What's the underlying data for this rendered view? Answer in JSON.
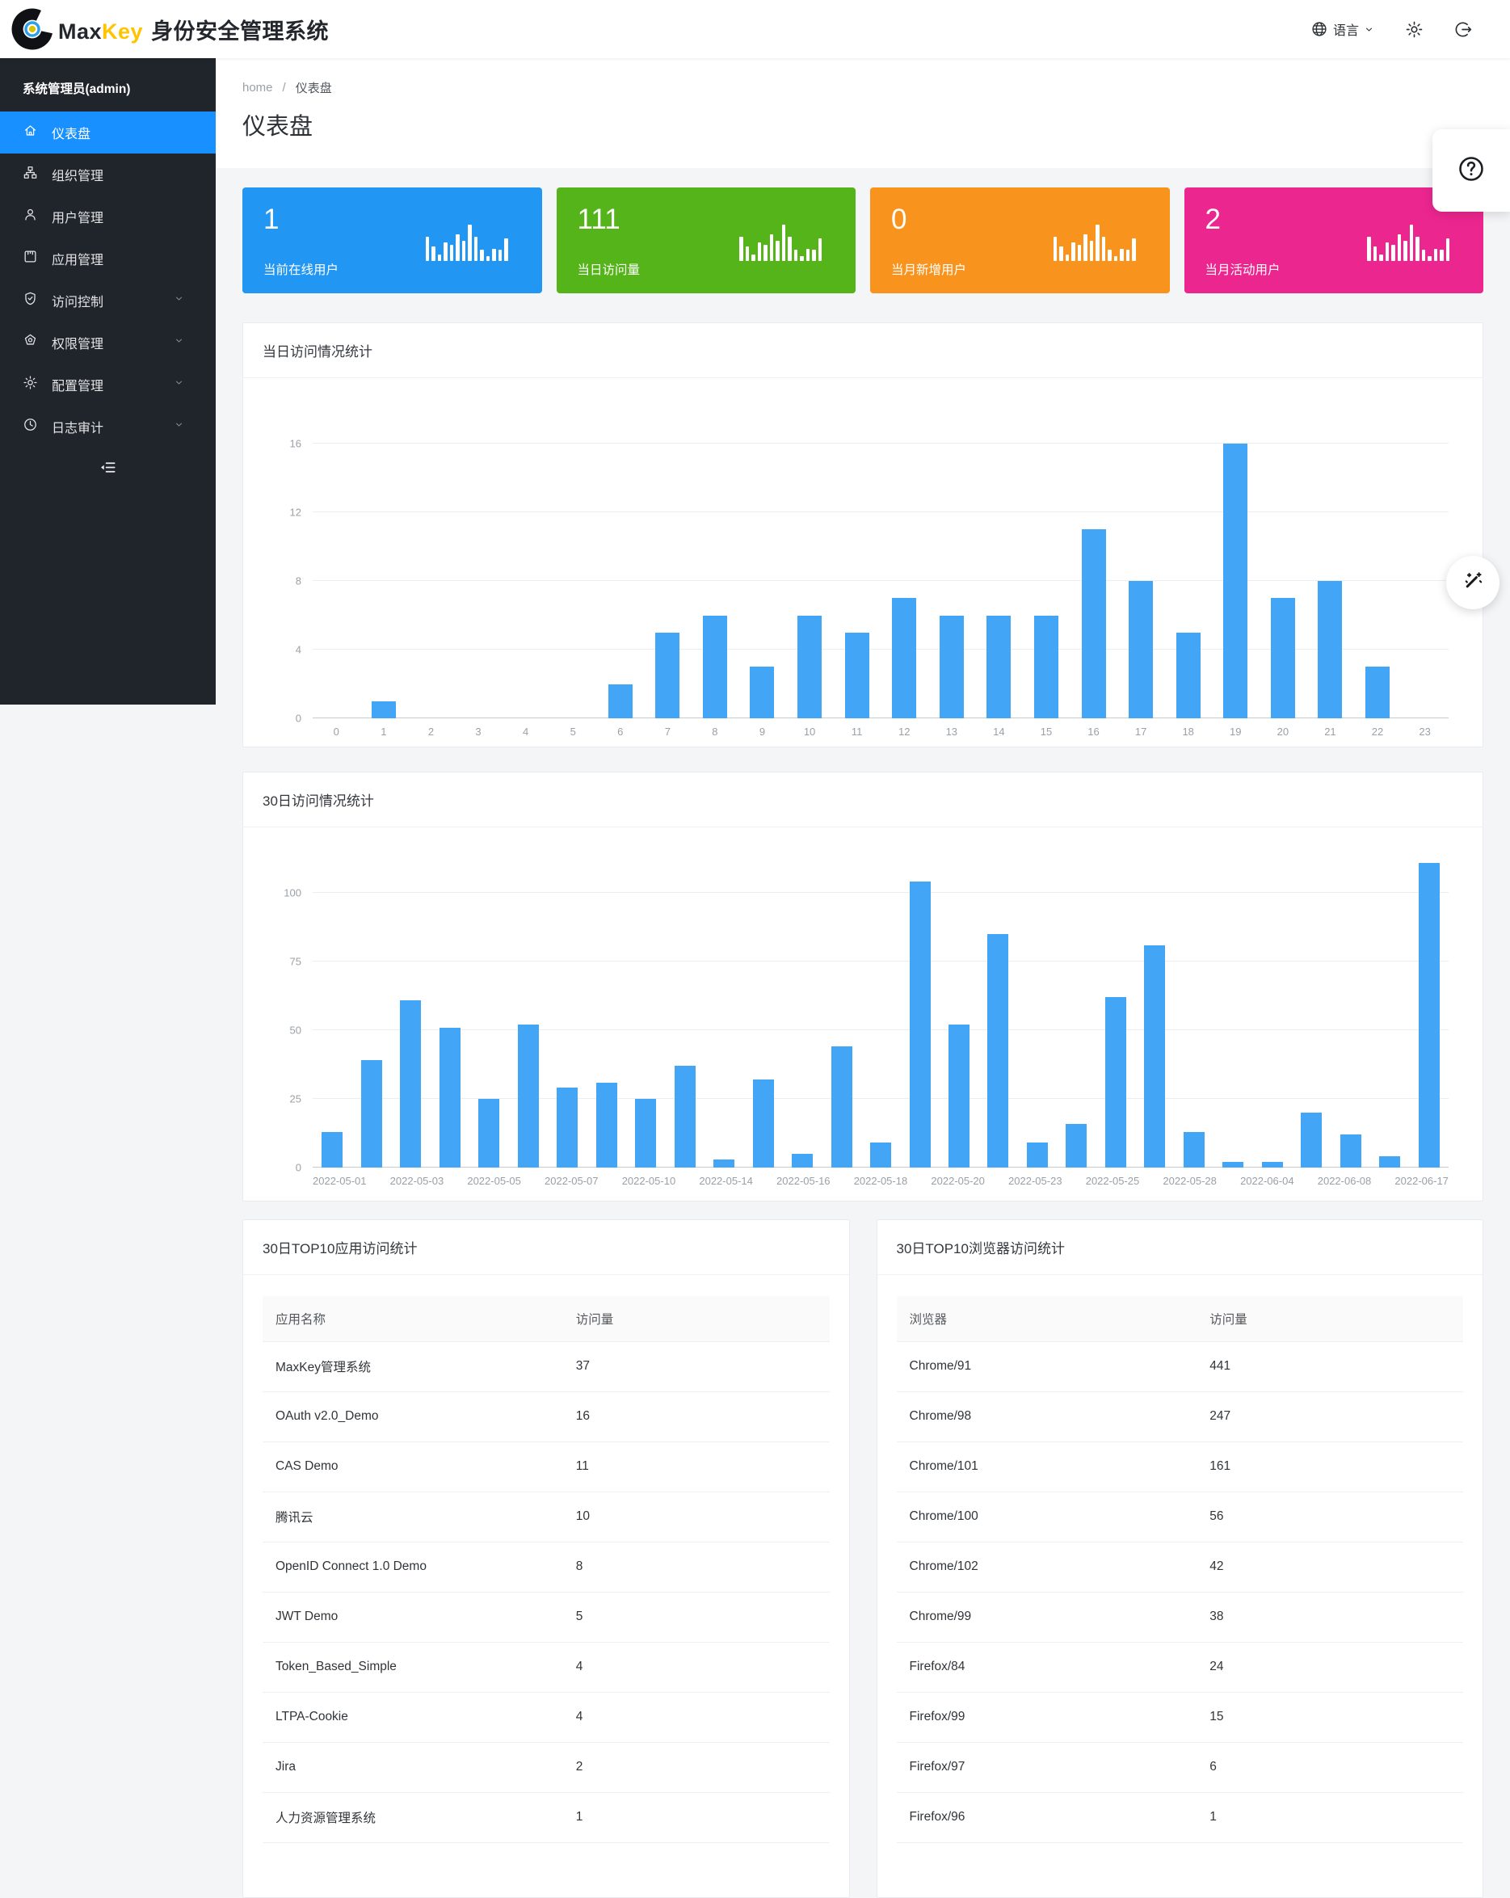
{
  "header": {
    "brand_max": "Max",
    "brand_key": "Key",
    "brand_suffix": "身份安全管理系统",
    "language_label": "语言"
  },
  "sidebar": {
    "admin_label": "系统管理员(admin)",
    "items": [
      {
        "label": "仪表盘",
        "icon": "home-icon",
        "active": true,
        "has_submenu": false
      },
      {
        "label": "组织管理",
        "icon": "org-icon",
        "active": false,
        "has_submenu": false
      },
      {
        "label": "用户管理",
        "icon": "user-icon",
        "active": false,
        "has_submenu": false
      },
      {
        "label": "应用管理",
        "icon": "app-icon",
        "active": false,
        "has_submenu": false
      },
      {
        "label": "访问控制",
        "icon": "shield-check-icon",
        "active": false,
        "has_submenu": true
      },
      {
        "label": "权限管理",
        "icon": "permission-icon",
        "active": false,
        "has_submenu": true
      },
      {
        "label": "配置管理",
        "icon": "gear-icon",
        "active": false,
        "has_submenu": true
      },
      {
        "label": "日志审计",
        "icon": "clock-icon",
        "active": false,
        "has_submenu": true
      }
    ]
  },
  "breadcrumb": {
    "home": "home",
    "separator": "/",
    "current": "仪表盘"
  },
  "page_title": "仪表盘",
  "stat_cards": [
    {
      "value": "1",
      "label": "当前在线用户",
      "color": "#2196f3"
    },
    {
      "value": "111",
      "label": "当日访问量",
      "color": "#55b419"
    },
    {
      "value": "0",
      "label": "当月新增用户",
      "color": "#f8941d"
    },
    {
      "value": "2",
      "label": "当月活动用户",
      "color": "#ec268f"
    }
  ],
  "chart_data": [
    {
      "type": "bar",
      "title": "当日访问情况统计",
      "categories": [
        "0",
        "1",
        "2",
        "3",
        "4",
        "5",
        "6",
        "7",
        "8",
        "9",
        "10",
        "11",
        "12",
        "13",
        "14",
        "15",
        "16",
        "17",
        "18",
        "19",
        "20",
        "21",
        "22",
        "23"
      ],
      "values": [
        0,
        1,
        0,
        0,
        0,
        0,
        2,
        5,
        6,
        3,
        6,
        5,
        7,
        6,
        6,
        6,
        11,
        8,
        5,
        16,
        7,
        8,
        3,
        0
      ],
      "xlabel": "",
      "ylabel": "",
      "ylim": [
        0,
        16
      ],
      "yticks": [
        0,
        4,
        8,
        12,
        16
      ],
      "grid": true,
      "legend": "none",
      "bar_color": "#42a5f5"
    },
    {
      "type": "bar",
      "title": "30日访问情况统计",
      "categories": [
        "2022-05-01",
        "",
        "2022-05-03",
        "",
        "2022-05-05",
        "",
        "2022-05-07",
        "",
        "2022-05-10",
        "",
        "2022-05-14",
        "",
        "2022-05-16",
        "",
        "2022-05-18",
        "",
        "2022-05-20",
        "",
        "2022-05-23",
        "",
        "2022-05-25",
        "",
        "2022-05-28",
        "",
        "2022-06-04",
        "",
        "2022-06-08",
        "",
        "2022-06-17"
      ],
      "values": [
        13,
        39,
        61,
        51,
        25,
        52,
        29,
        31,
        25,
        37,
        3,
        32,
        5,
        44,
        9,
        104,
        52,
        85,
        9,
        16,
        62,
        81,
        13,
        2,
        2,
        20,
        12,
        4,
        111
      ],
      "xlabel": "",
      "ylabel": "",
      "ylim": [
        0,
        100
      ],
      "yticks": [
        0,
        25,
        50,
        75,
        100
      ],
      "grid": true,
      "legend": "none",
      "bar_color": "#42a5f5"
    }
  ],
  "tables": [
    {
      "title": "30日TOP10应用访问统计",
      "columns": [
        "应用名称",
        "访问量"
      ],
      "rows": [
        [
          "MaxKey管理系统",
          "37"
        ],
        [
          "OAuth v2.0_Demo",
          "16"
        ],
        [
          "CAS Demo",
          "11"
        ],
        [
          "腾讯云",
          "10"
        ],
        [
          "OpenID Connect 1.0 Demo",
          "8"
        ],
        [
          "JWT Demo",
          "5"
        ],
        [
          "Token_Based_Simple",
          "4"
        ],
        [
          "LTPA-Cookie",
          "4"
        ],
        [
          "Jira",
          "2"
        ],
        [
          "人力资源管理系统",
          "1"
        ]
      ]
    },
    {
      "title": "30日TOP10浏览器访问统计",
      "columns": [
        "浏览器",
        "访问量"
      ],
      "rows": [
        [
          "Chrome/91",
          "441"
        ],
        [
          "Chrome/98",
          "247"
        ],
        [
          "Chrome/101",
          "161"
        ],
        [
          "Chrome/100",
          "56"
        ],
        [
          "Chrome/102",
          "42"
        ],
        [
          "Chrome/99",
          "38"
        ],
        [
          "Firefox/84",
          "24"
        ],
        [
          "Firefox/99",
          "15"
        ],
        [
          "Firefox/97",
          "6"
        ],
        [
          "Firefox/96",
          "1"
        ]
      ]
    }
  ],
  "floating": {
    "help_icon": "question-circle-icon",
    "wand_icon": "magic-wand-icon"
  }
}
